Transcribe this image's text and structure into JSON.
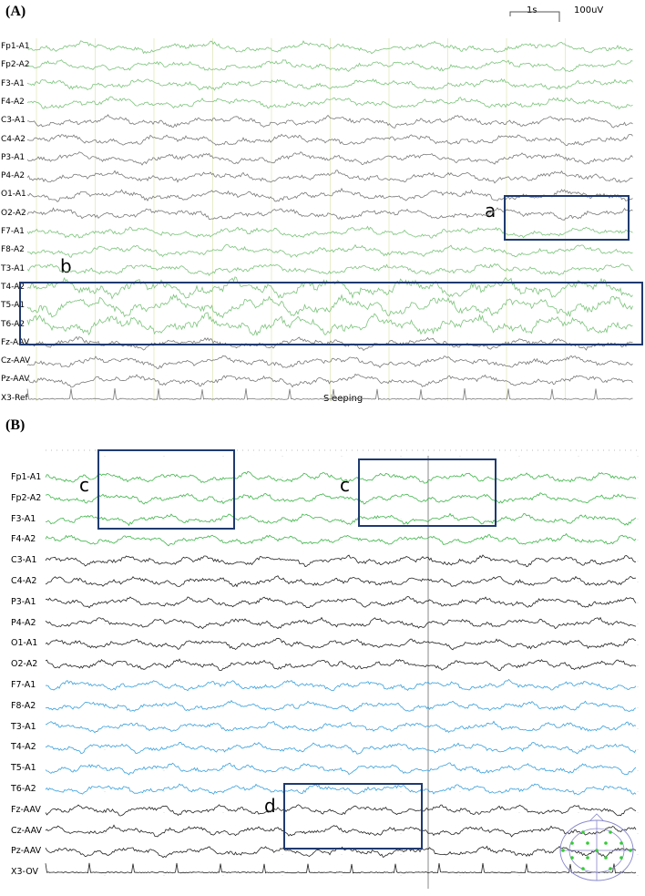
{
  "panel_a": {
    "label": "(A)",
    "scale_time": "1s",
    "scale_amp": "100uV",
    "status_text": "Sleeping",
    "channels": [
      {
        "name": "Fp1-A1",
        "color": "#7cc37c"
      },
      {
        "name": "Fp2-A2",
        "color": "#7cc37c"
      },
      {
        "name": "F3-A1",
        "color": "#7cc37c"
      },
      {
        "name": "F4-A2",
        "color": "#7cc37c"
      },
      {
        "name": "C3-A1",
        "color": "#7a7a7a"
      },
      {
        "name": "C4-A2",
        "color": "#7a7a7a"
      },
      {
        "name": "P3-A1",
        "color": "#7a7a7a"
      },
      {
        "name": "P4-A2",
        "color": "#7a7a7a"
      },
      {
        "name": "O1-A1",
        "color": "#7a7a7a"
      },
      {
        "name": "O2-A2",
        "color": "#7a7a7a"
      },
      {
        "name": "F7-A1",
        "color": "#7cc37c"
      },
      {
        "name": "F8-A2",
        "color": "#7cc37c"
      },
      {
        "name": "T3-A1",
        "color": "#7cc37c"
      },
      {
        "name": "T4-A2",
        "color": "#7cc37c"
      },
      {
        "name": "T5-A1",
        "color": "#7cc37c"
      },
      {
        "name": "T6-A2",
        "color": "#7cc37c"
      },
      {
        "name": "Fz-AAV",
        "color": "#7a7a7a"
      },
      {
        "name": "Cz-AAV",
        "color": "#7a7a7a"
      },
      {
        "name": "Pz-AAV",
        "color": "#7a7a7a"
      },
      {
        "name": "X3-Ref",
        "color": "#7a7a7a"
      }
    ],
    "annotations": [
      "a",
      "b"
    ]
  },
  "panel_b": {
    "label": "(B)",
    "channels": [
      {
        "name": "Fp1-A1",
        "color": "#3fb54a"
      },
      {
        "name": "Fp2-A2",
        "color": "#3fb54a"
      },
      {
        "name": "F3-A1",
        "color": "#3fb54a"
      },
      {
        "name": "F4-A2",
        "color": "#3fb54a"
      },
      {
        "name": "C3-A1",
        "color": "#222222"
      },
      {
        "name": "C4-A2",
        "color": "#222222"
      },
      {
        "name": "P3-A1",
        "color": "#222222"
      },
      {
        "name": "P4-A2",
        "color": "#222222"
      },
      {
        "name": "O1-A1",
        "color": "#222222"
      },
      {
        "name": "O2-A2",
        "color": "#222222"
      },
      {
        "name": "F7-A1",
        "color": "#3aa0dc"
      },
      {
        "name": "F8-A2",
        "color": "#3aa0dc"
      },
      {
        "name": "T3-A1",
        "color": "#3aa0dc"
      },
      {
        "name": "T4-A2",
        "color": "#3aa0dc"
      },
      {
        "name": "T5-A1",
        "color": "#3aa0dc"
      },
      {
        "name": "T6-A2",
        "color": "#3aa0dc"
      },
      {
        "name": "Fz-AAV",
        "color": "#222222"
      },
      {
        "name": "Cz-AAV",
        "color": "#222222"
      },
      {
        "name": "Pz-AAV",
        "color": "#222222"
      },
      {
        "name": "X3-OV",
        "color": "#222222"
      }
    ],
    "annotations": [
      "c",
      "c",
      "d"
    ]
  },
  "colors": {
    "box": "#1f3a70",
    "grid_a": "#e8ecc8",
    "grid_b": "#c8c8c8",
    "status": "#4caf50"
  }
}
